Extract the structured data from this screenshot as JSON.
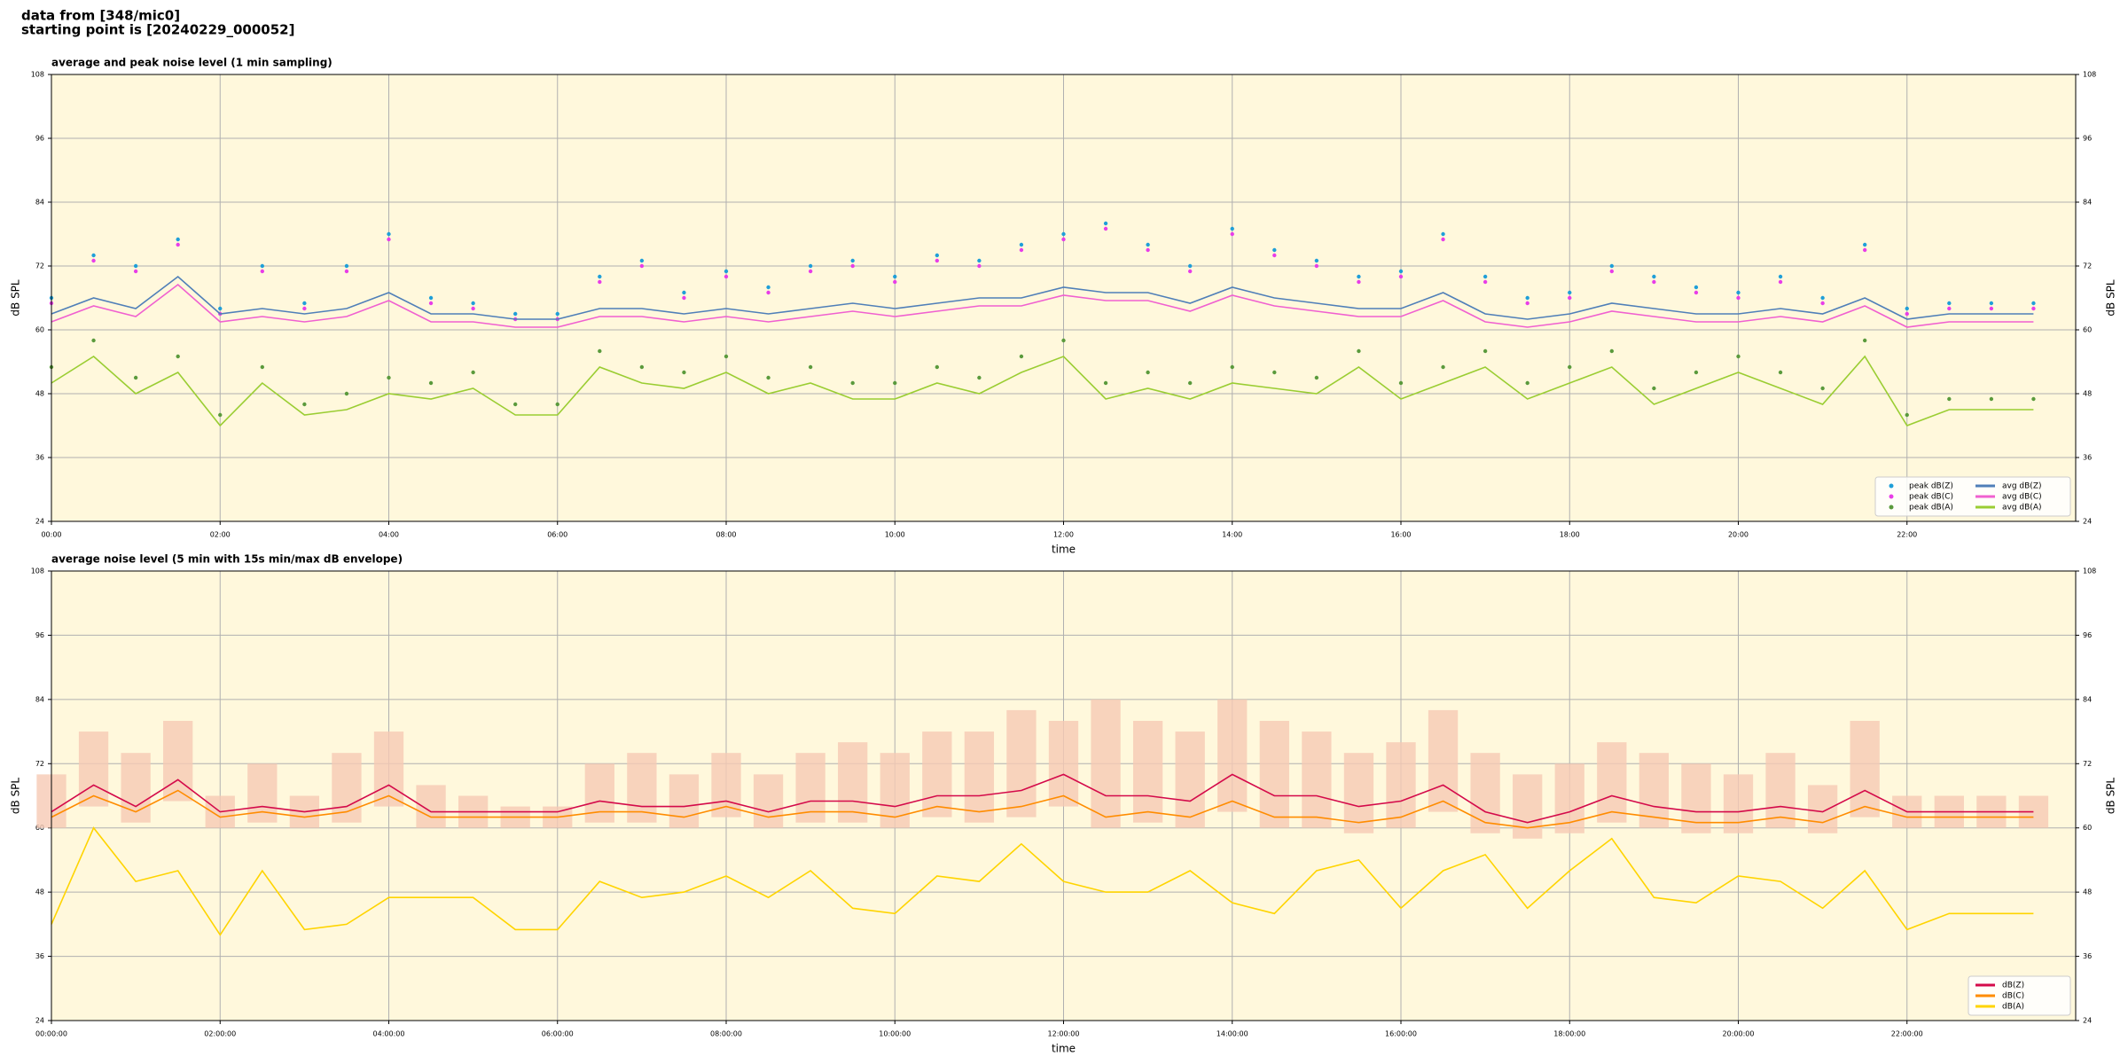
{
  "figure": {
    "title_lines": [
      "data from [348/mic0]",
      "starting point is [20240229_000052]"
    ]
  },
  "chart_data": [
    {
      "type": "line",
      "title": "average and peak noise level (1 min sampling)",
      "xlabel": "time",
      "ylabel": "dB SPL",
      "y2label": "dB SPL",
      "xlim": [
        0,
        24
      ],
      "ylim": [
        24,
        108
      ],
      "xticks": [
        {
          "value": 0,
          "label": "00:00"
        },
        {
          "value": 2,
          "label": "02:00"
        },
        {
          "value": 4,
          "label": "04:00"
        },
        {
          "value": 6,
          "label": "06:00"
        },
        {
          "value": 8,
          "label": "08:00"
        },
        {
          "value": 10,
          "label": "10:00"
        },
        {
          "value": 12,
          "label": "12:00"
        },
        {
          "value": 14,
          "label": "14:00"
        },
        {
          "value": 16,
          "label": "16:00"
        },
        {
          "value": 18,
          "label": "18:00"
        },
        {
          "value": 20,
          "label": "20:00"
        },
        {
          "value": 22,
          "label": "22:00"
        }
      ],
      "yticks": [
        24,
        36,
        48,
        60,
        72,
        84,
        96,
        108
      ],
      "grid": true,
      "legend": "lower right",
      "legend_columns": 2,
      "x": [
        0,
        0.5,
        1,
        1.5,
        2,
        2.5,
        3,
        3.5,
        4,
        4.5,
        5,
        5.5,
        6,
        6.5,
        7,
        7.5,
        8,
        8.5,
        9,
        9.5,
        10,
        10.5,
        11,
        11.5,
        12,
        12.5,
        13,
        13.5,
        14,
        14.5,
        15,
        15.5,
        16,
        16.5,
        17,
        17.5,
        18,
        18.5,
        19,
        19.5,
        20,
        20.5,
        21,
        21.5,
        22,
        22.5,
        23,
        23.5
      ],
      "series": [
        {
          "name": "peak dB(Z)",
          "type": "scatter",
          "color": "#1f9fd8",
          "values": [
            66,
            74,
            72,
            77,
            64,
            72,
            65,
            72,
            78,
            66,
            65,
            63,
            63,
            70,
            73,
            67,
            71,
            68,
            72,
            73,
            70,
            74,
            73,
            76,
            78,
            80,
            76,
            72,
            79,
            75,
            73,
            70,
            71,
            78,
            70,
            66,
            67,
            72,
            70,
            68,
            67,
            70,
            66,
            76,
            64,
            65,
            65,
            65
          ]
        },
        {
          "name": "peak dB(C)",
          "type": "scatter",
          "color": "#e83de8",
          "values": [
            65,
            73,
            71,
            76,
            63,
            71,
            64,
            71,
            77,
            65,
            64,
            62,
            62,
            69,
            72,
            66,
            70,
            67,
            71,
            72,
            69,
            73,
            72,
            75,
            77,
            79,
            75,
            71,
            78,
            74,
            72,
            69,
            70,
            77,
            69,
            65,
            66,
            71,
            69,
            67,
            66,
            69,
            65,
            75,
            63,
            64,
            64,
            64
          ]
        },
        {
          "name": "peak dB(A)",
          "type": "scatter",
          "color": "#5a9a3c",
          "values": [
            53,
            58,
            51,
            55,
            44,
            53,
            46,
            48,
            51,
            50,
            52,
            46,
            46,
            56,
            53,
            52,
            55,
            51,
            53,
            50,
            50,
            53,
            51,
            55,
            58,
            50,
            52,
            50,
            53,
            52,
            51,
            56,
            50,
            53,
            56,
            50,
            53,
            56,
            49,
            52,
            55,
            52,
            49,
            58,
            44,
            47,
            47,
            47
          ]
        },
        {
          "name": "avg dB(Z)",
          "type": "line",
          "color": "#4f7fb8",
          "values": [
            63,
            66,
            64,
            70,
            63,
            64,
            63,
            64,
            67,
            63,
            63,
            62,
            62,
            64,
            64,
            63,
            64,
            63,
            64,
            65,
            64,
            65,
            66,
            66,
            68,
            67,
            67,
            65,
            68,
            66,
            65,
            64,
            64,
            67,
            63,
            62,
            63,
            65,
            64,
            63,
            63,
            64,
            63,
            66,
            62,
            63,
            63,
            63
          ]
        },
        {
          "name": "avg dB(C)",
          "type": "line",
          "color": "#f060d0",
          "values": [
            61.5,
            64.5,
            62.5,
            68.5,
            61.5,
            62.5,
            61.5,
            62.5,
            65.5,
            61.5,
            61.5,
            60.5,
            60.5,
            62.5,
            62.5,
            61.5,
            62.5,
            61.5,
            62.5,
            63.5,
            62.5,
            63.5,
            64.5,
            64.5,
            66.5,
            65.5,
            65.5,
            63.5,
            66.5,
            64.5,
            63.5,
            62.5,
            62.5,
            65.5,
            61.5,
            60.5,
            61.5,
            63.5,
            62.5,
            61.5,
            61.5,
            62.5,
            61.5,
            64.5,
            60.5,
            61.5,
            61.5,
            61.5
          ]
        },
        {
          "name": "avg dB(A)",
          "type": "line",
          "color": "#9acd32",
          "values": [
            50,
            55,
            48,
            52,
            42,
            50,
            44,
            45,
            48,
            47,
            49,
            44,
            44,
            53,
            50,
            49,
            52,
            48,
            50,
            47,
            47,
            50,
            48,
            52,
            55,
            47,
            49,
            47,
            50,
            49,
            48,
            53,
            47,
            50,
            53,
            47,
            50,
            53,
            46,
            49,
            52,
            49,
            46,
            55,
            42,
            45,
            45,
            45
          ]
        }
      ]
    },
    {
      "type": "line",
      "title": "average noise level (5 min with 15s min/max dB envelope)",
      "xlabel": "time",
      "ylabel": "dB SPL",
      "y2label": "dB SPL",
      "xlim": [
        0,
        24
      ],
      "ylim": [
        24,
        108
      ],
      "xticks": [
        {
          "value": 0,
          "label": "00:00:00"
        },
        {
          "value": 2,
          "label": "02:00:00"
        },
        {
          "value": 4,
          "label": "04:00:00"
        },
        {
          "value": 6,
          "label": "06:00:00"
        },
        {
          "value": 8,
          "label": "08:00:00"
        },
        {
          "value": 10,
          "label": "10:00:00"
        },
        {
          "value": 12,
          "label": "12:00:00"
        },
        {
          "value": 14,
          "label": "14:00:00"
        },
        {
          "value": 16,
          "label": "16:00:00"
        },
        {
          "value": 18,
          "label": "18:00:00"
        },
        {
          "value": 20,
          "label": "20:00:00"
        },
        {
          "value": 22,
          "label": "22:00:00"
        }
      ],
      "yticks": [
        24,
        36,
        48,
        60,
        72,
        84,
        96,
        108
      ],
      "grid": true,
      "legend": "lower right",
      "legend_columns": 1,
      "x": [
        0,
        0.5,
        1,
        1.5,
        2,
        2.5,
        3,
        3.5,
        4,
        4.5,
        5,
        5.5,
        6,
        6.5,
        7,
        7.5,
        8,
        8.5,
        9,
        9.5,
        10,
        10.5,
        11,
        11.5,
        12,
        12.5,
        13,
        13.5,
        14,
        14.5,
        15,
        15.5,
        16,
        16.5,
        17,
        17.5,
        18,
        18.5,
        19,
        19.5,
        20,
        20.5,
        21,
        21.5,
        22,
        22.5,
        23,
        23.5
      ],
      "envelope": {
        "color": "#f6c9b4",
        "upper": [
          70,
          78,
          74,
          80,
          66,
          72,
          66,
          74,
          78,
          68,
          66,
          64,
          64,
          72,
          74,
          70,
          74,
          70,
          74,
          76,
          74,
          78,
          78,
          82,
          80,
          84,
          80,
          78,
          84,
          80,
          78,
          74,
          76,
          82,
          74,
          70,
          72,
          76,
          74,
          72,
          70,
          74,
          68,
          80,
          66,
          66,
          66,
          66
        ],
        "lower": [
          60,
          64,
          61,
          65,
          60,
          61,
          60,
          61,
          64,
          60,
          60,
          60,
          60,
          61,
          61,
          60,
          62,
          60,
          61,
          61,
          60,
          62,
          61,
          62,
          64,
          60,
          61,
          60,
          63,
          60,
          60,
          59,
          60,
          63,
          59,
          58,
          59,
          61,
          60,
          59,
          59,
          60,
          59,
          62,
          60,
          60,
          60,
          60
        ]
      },
      "series": [
        {
          "name": "dB(Z)",
          "type": "line",
          "color": "#d40a4a",
          "values": [
            63,
            68,
            64,
            69,
            63,
            64,
            63,
            64,
            68,
            63,
            63,
            63,
            63,
            65,
            64,
            64,
            65,
            63,
            65,
            65,
            64,
            66,
            66,
            67,
            70,
            66,
            66,
            65,
            70,
            66,
            66,
            64,
            65,
            68,
            63,
            61,
            63,
            66,
            64,
            63,
            63,
            64,
            63,
            67,
            63,
            63,
            63,
            63
          ]
        },
        {
          "name": "dB(C)",
          "type": "line",
          "color": "#ff8c00",
          "values": [
            62,
            66,
            63,
            67,
            62,
            63,
            62,
            63,
            66,
            62,
            62,
            62,
            62,
            63,
            63,
            62,
            64,
            62,
            63,
            63,
            62,
            64,
            63,
            64,
            66,
            62,
            63,
            62,
            65,
            62,
            62,
            61,
            62,
            65,
            61,
            60,
            61,
            63,
            62,
            61,
            61,
            62,
            61,
            64,
            62,
            62,
            62,
            62
          ]
        },
        {
          "name": "dB(A)",
          "type": "line",
          "color": "#ffd400",
          "values": [
            42,
            60,
            50,
            52,
            40,
            52,
            41,
            42,
            47,
            47,
            47,
            41,
            41,
            50,
            47,
            48,
            51,
            47,
            52,
            45,
            44,
            51,
            50,
            57,
            50,
            48,
            48,
            52,
            46,
            44,
            52,
            54,
            45,
            52,
            55,
            45,
            52,
            58,
            47,
            46,
            51,
            50,
            45,
            52,
            41,
            44,
            44,
            44
          ]
        }
      ]
    }
  ]
}
